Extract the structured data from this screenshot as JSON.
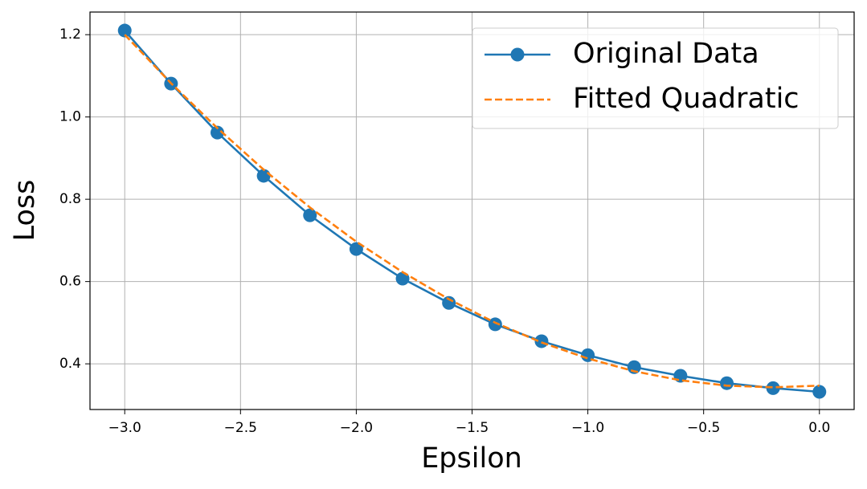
{
  "chart_data": {
    "type": "line",
    "x_label": "Epsilon",
    "y_label": "Loss",
    "x": [
      -3.0,
      -2.8,
      -2.6,
      -2.4,
      -2.2,
      -2.0,
      -1.8,
      -1.6,
      -1.4,
      -1.2,
      -1.0,
      -0.8,
      -0.6,
      -0.4,
      -0.2,
      0.0
    ],
    "series": [
      {
        "name": "Original Data",
        "color": "#1f77b4",
        "linestyle": "solid",
        "marker": "o",
        "values": [
          1.21,
          1.081,
          0.962,
          0.857,
          0.761,
          0.679,
          0.607,
          0.548,
          0.496,
          0.455,
          0.421,
          0.392,
          0.371,
          0.353,
          0.341,
          0.332
        ]
      },
      {
        "name": "Fitted Quadratic",
        "color": "#ff7f0e",
        "linestyle": "dashed",
        "marker": "none",
        "values": [
          1.2,
          1.082,
          0.973,
          0.872,
          0.78,
          0.697,
          0.623,
          0.557,
          0.5,
          0.452,
          0.413,
          0.382,
          0.36,
          0.347,
          0.343,
          0.347
        ]
      }
    ],
    "xlim": [
      -3.15,
      0.15
    ],
    "ylim": [
      0.289,
      1.255
    ],
    "xticks": [
      {
        "value": -3.0,
        "label": "−3.0"
      },
      {
        "value": -2.5,
        "label": "−2.5"
      },
      {
        "value": -2.0,
        "label": "−2.0"
      },
      {
        "value": -1.5,
        "label": "−1.5"
      },
      {
        "value": -1.0,
        "label": "−1.0"
      },
      {
        "value": -0.5,
        "label": "−0.5"
      },
      {
        "value": 0.0,
        "label": "0.0"
      }
    ],
    "yticks": [
      0.4,
      0.6,
      0.8,
      {
        "value": 1.0,
        "label": "1.0"
      },
      1.2
    ],
    "grid": true,
    "legend": "upper right"
  }
}
